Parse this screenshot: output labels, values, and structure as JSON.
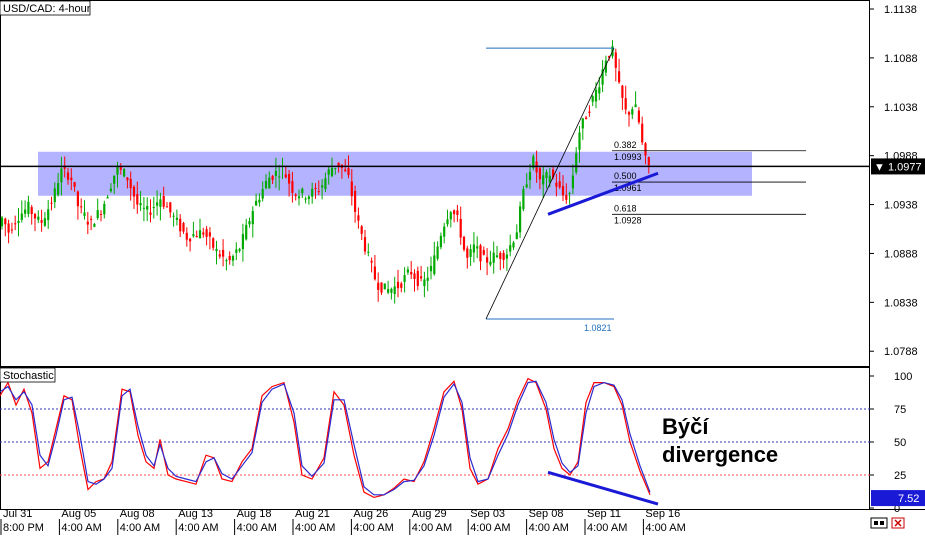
{
  "chart_data": [
    {
      "type": "candlestick",
      "title": "USD/CAD: 4-hour",
      "ylim": [
        1.0778,
        1.1138
      ],
      "y_ticks": [
        "1.1138",
        "1.1088",
        "1.1038",
        "1.0988",
        "1.0938",
        "1.0888",
        "1.0838",
        "1.0788"
      ],
      "current_price": "1.0977",
      "price_path": [
        [
          0,
          1.0915
        ],
        [
          4,
          1.0925
        ],
        [
          10,
          1.091
        ],
        [
          18,
          1.0925
        ],
        [
          30,
          1.0935
        ],
        [
          42,
          1.0918
        ],
        [
          55,
          1.0945
        ],
        [
          62,
          1.0972
        ],
        [
          72,
          1.0968
        ],
        [
          80,
          1.0935
        ],
        [
          92,
          1.0918
        ],
        [
          104,
          1.0935
        ],
        [
          118,
          1.0975
        ],
        [
          128,
          1.0968
        ],
        [
          140,
          1.0935
        ],
        [
          150,
          1.093
        ],
        [
          162,
          1.0945
        ],
        [
          175,
          1.0925
        ],
        [
          188,
          1.0905
        ],
        [
          205,
          1.091
        ],
        [
          218,
          1.089
        ],
        [
          230,
          1.0878
        ],
        [
          242,
          1.0895
        ],
        [
          255,
          1.0935
        ],
        [
          270,
          1.0965
        ],
        [
          284,
          1.0975
        ],
        [
          296,
          1.095
        ],
        [
          310,
          1.0948
        ],
        [
          322,
          1.0955
        ],
        [
          332,
          1.0975
        ],
        [
          340,
          1.098
        ],
        [
          350,
          1.0965
        ],
        [
          358,
          1.0925
        ],
        [
          368,
          1.089
        ],
        [
          378,
          1.0858
        ],
        [
          388,
          1.085
        ],
        [
          400,
          1.0855
        ],
        [
          412,
          1.087
        ],
        [
          424,
          1.0855
        ],
        [
          434,
          1.0875
        ],
        [
          444,
          1.0915
        ],
        [
          452,
          1.0935
        ],
        [
          460,
          1.092
        ],
        [
          468,
          1.088
        ],
        [
          476,
          1.0895
        ],
        [
          486,
          1.088
        ],
        [
          496,
          1.0885
        ],
        [
          508,
          1.0888
        ],
        [
          518,
          1.091
        ],
        [
          526,
          1.0955
        ],
        [
          534,
          1.0985
        ],
        [
          542,
          1.096
        ],
        [
          552,
          1.097
        ],
        [
          560,
          1.0955
        ],
        [
          566,
          1.0945
        ],
        [
          572,
          1.095
        ],
        [
          580,
          1.101
        ],
        [
          590,
          1.1035
        ],
        [
          600,
          1.106
        ],
        [
          608,
          1.109
        ],
        [
          614,
          1.1095
        ],
        [
          620,
          1.106
        ],
        [
          628,
          1.103
        ],
        [
          636,
          1.104
        ],
        [
          640,
          1.1025
        ],
        [
          646,
          1.0985
        ],
        [
          650,
          1.0977
        ]
      ],
      "support_zone": [
        1.0947,
        1.0992
      ],
      "horizontal_line": 1.0977,
      "swing_high": 1.1098,
      "swing_low": 1.0821,
      "swing_low_label": "1.0821",
      "trendline": [
        [
          548,
          1.0928
        ],
        [
          658,
          1.097
        ]
      ],
      "fib_levels": [
        {
          "ratio": "0.382",
          "price": "1.0993",
          "value": 1.0993
        },
        {
          "ratio": "0.500",
          "price": "1.0961",
          "value": 1.0961
        },
        {
          "ratio": "0.618",
          "price": "1.0928",
          "value": 1.0928
        }
      ]
    },
    {
      "type": "line",
      "title": "Stochastic",
      "ylim": [
        0,
        100
      ],
      "y_ticks": [
        "100",
        "75",
        "50",
        "25",
        "0"
      ],
      "levels": [
        75,
        50,
        25
      ],
      "current_value": "7.52",
      "series": [
        {
          "color": "#ff0000",
          "points": [
            [
              0,
              85
            ],
            [
              8,
              95
            ],
            [
              16,
              78
            ],
            [
              24,
              90
            ],
            [
              32,
              72
            ],
            [
              40,
              30
            ],
            [
              48,
              35
            ],
            [
              56,
              60
            ],
            [
              64,
              85
            ],
            [
              72,
              82
            ],
            [
              80,
              45
            ],
            [
              88,
              14
            ],
            [
              96,
              20
            ],
            [
              104,
              22
            ],
            [
              112,
              35
            ],
            [
              122,
              90
            ],
            [
              130,
              88
            ],
            [
              138,
              55
            ],
            [
              146,
              35
            ],
            [
              154,
              30
            ],
            [
              160,
              52
            ],
            [
              168,
              25
            ],
            [
              176,
              22
            ],
            [
              186,
              20
            ],
            [
              196,
              18
            ],
            [
              206,
              40
            ],
            [
              214,
              38
            ],
            [
              222,
              22
            ],
            [
              232,
              20
            ],
            [
              242,
              35
            ],
            [
              252,
              45
            ],
            [
              262,
              85
            ],
            [
              272,
              92
            ],
            [
              284,
              95
            ],
            [
              294,
              65
            ],
            [
              302,
              25
            ],
            [
              312,
              22
            ],
            [
              324,
              38
            ],
            [
              334,
              88
            ],
            [
              344,
              78
            ],
            [
              354,
              40
            ],
            [
              364,
              12
            ],
            [
              374,
              8
            ],
            [
              384,
              10
            ],
            [
              394,
              15
            ],
            [
              404,
              22
            ],
            [
              414,
              20
            ],
            [
              424,
              35
            ],
            [
              434,
              60
            ],
            [
              444,
              88
            ],
            [
              454,
              96
            ],
            [
              462,
              75
            ],
            [
              470,
              30
            ],
            [
              478,
              18
            ],
            [
              488,
              22
            ],
            [
              498,
              45
            ],
            [
              508,
              60
            ],
            [
              518,
              82
            ],
            [
              528,
              98
            ],
            [
              536,
              95
            ],
            [
              546,
              75
            ],
            [
              554,
              45
            ],
            [
              562,
              30
            ],
            [
              570,
              25
            ],
            [
              578,
              35
            ],
            [
              586,
              80
            ],
            [
              594,
              95
            ],
            [
              604,
              95
            ],
            [
              614,
              92
            ],
            [
              622,
              78
            ],
            [
              630,
              50
            ],
            [
              640,
              28
            ],
            [
              650,
              10
            ]
          ]
        },
        {
          "color": "#2a2ad0",
          "points": [
            [
              0,
              88
            ],
            [
              8,
              92
            ],
            [
              16,
              82
            ],
            [
              24,
              88
            ],
            [
              32,
              78
            ],
            [
              40,
              40
            ],
            [
              48,
              32
            ],
            [
              56,
              55
            ],
            [
              64,
              82
            ],
            [
              72,
              84
            ],
            [
              80,
              55
            ],
            [
              88,
              20
            ],
            [
              96,
              18
            ],
            [
              104,
              22
            ],
            [
              112,
              30
            ],
            [
              122,
              85
            ],
            [
              130,
              90
            ],
            [
              138,
              62
            ],
            [
              146,
              40
            ],
            [
              154,
              32
            ],
            [
              160,
              48
            ],
            [
              168,
              30
            ],
            [
              176,
              24
            ],
            [
              186,
              22
            ],
            [
              196,
              20
            ],
            [
              206,
              35
            ],
            [
              214,
              38
            ],
            [
              222,
              26
            ],
            [
              232,
              22
            ],
            [
              242,
              32
            ],
            [
              252,
              42
            ],
            [
              262,
              80
            ],
            [
              272,
              90
            ],
            [
              284,
              94
            ],
            [
              294,
              72
            ],
            [
              302,
              32
            ],
            [
              312,
              24
            ],
            [
              324,
              34
            ],
            [
              334,
              82
            ],
            [
              344,
              82
            ],
            [
              354,
              48
            ],
            [
              364,
              16
            ],
            [
              374,
              10
            ],
            [
              384,
              10
            ],
            [
              394,
              14
            ],
            [
              404,
              20
            ],
            [
              414,
              21
            ],
            [
              424,
              32
            ],
            [
              434,
              55
            ],
            [
              444,
              84
            ],
            [
              454,
              94
            ],
            [
              462,
              80
            ],
            [
              470,
              38
            ],
            [
              478,
              20
            ],
            [
              488,
              22
            ],
            [
              498,
              40
            ],
            [
              508,
              56
            ],
            [
              518,
              78
            ],
            [
              528,
              95
            ],
            [
              536,
              96
            ],
            [
              546,
              80
            ],
            [
              554,
              52
            ],
            [
              562,
              34
            ],
            [
              570,
              27
            ],
            [
              578,
              32
            ],
            [
              586,
              72
            ],
            [
              594,
              92
            ],
            [
              604,
              95
            ],
            [
              614,
              93
            ],
            [
              622,
              82
            ],
            [
              630,
              56
            ],
            [
              640,
              32
            ],
            [
              650,
              12
            ]
          ]
        }
      ],
      "divergence_line": [
        [
          548,
          27
        ],
        [
          658,
          3
        ]
      ],
      "annotation": [
        "Býčí",
        "divergence"
      ]
    }
  ],
  "x_axis": {
    "dates": [
      "Jul 31",
      "Aug 05",
      "Aug 08",
      "Aug 13",
      "Aug 18",
      "Aug 21",
      "Aug 26",
      "Aug 29",
      "Sep 03",
      "Sep 08",
      "Sep 11",
      "Sep 16"
    ],
    "times": [
      "8:00 PM",
      "4:00 AM",
      "4:00 AM",
      "4:00 AM",
      "4:00 AM",
      "4:00 AM",
      "4:00 AM",
      "4:00 AM",
      "4:00 AM",
      "4:00 AM",
      "4:00 AM",
      "4:00 AM"
    ]
  },
  "colors": {
    "bull_candle": "#00aa00",
    "bear_candle": "#ff0000",
    "support_zone": "#b3b3ff",
    "fib_line": "#1f6fbf",
    "trendline": "#1a1ad6",
    "price_label_bg": "#000000",
    "stoch_label_bg": "#1a1ad6",
    "level_red": "#ff4d4d",
    "level_blue": "#3333bb"
  }
}
